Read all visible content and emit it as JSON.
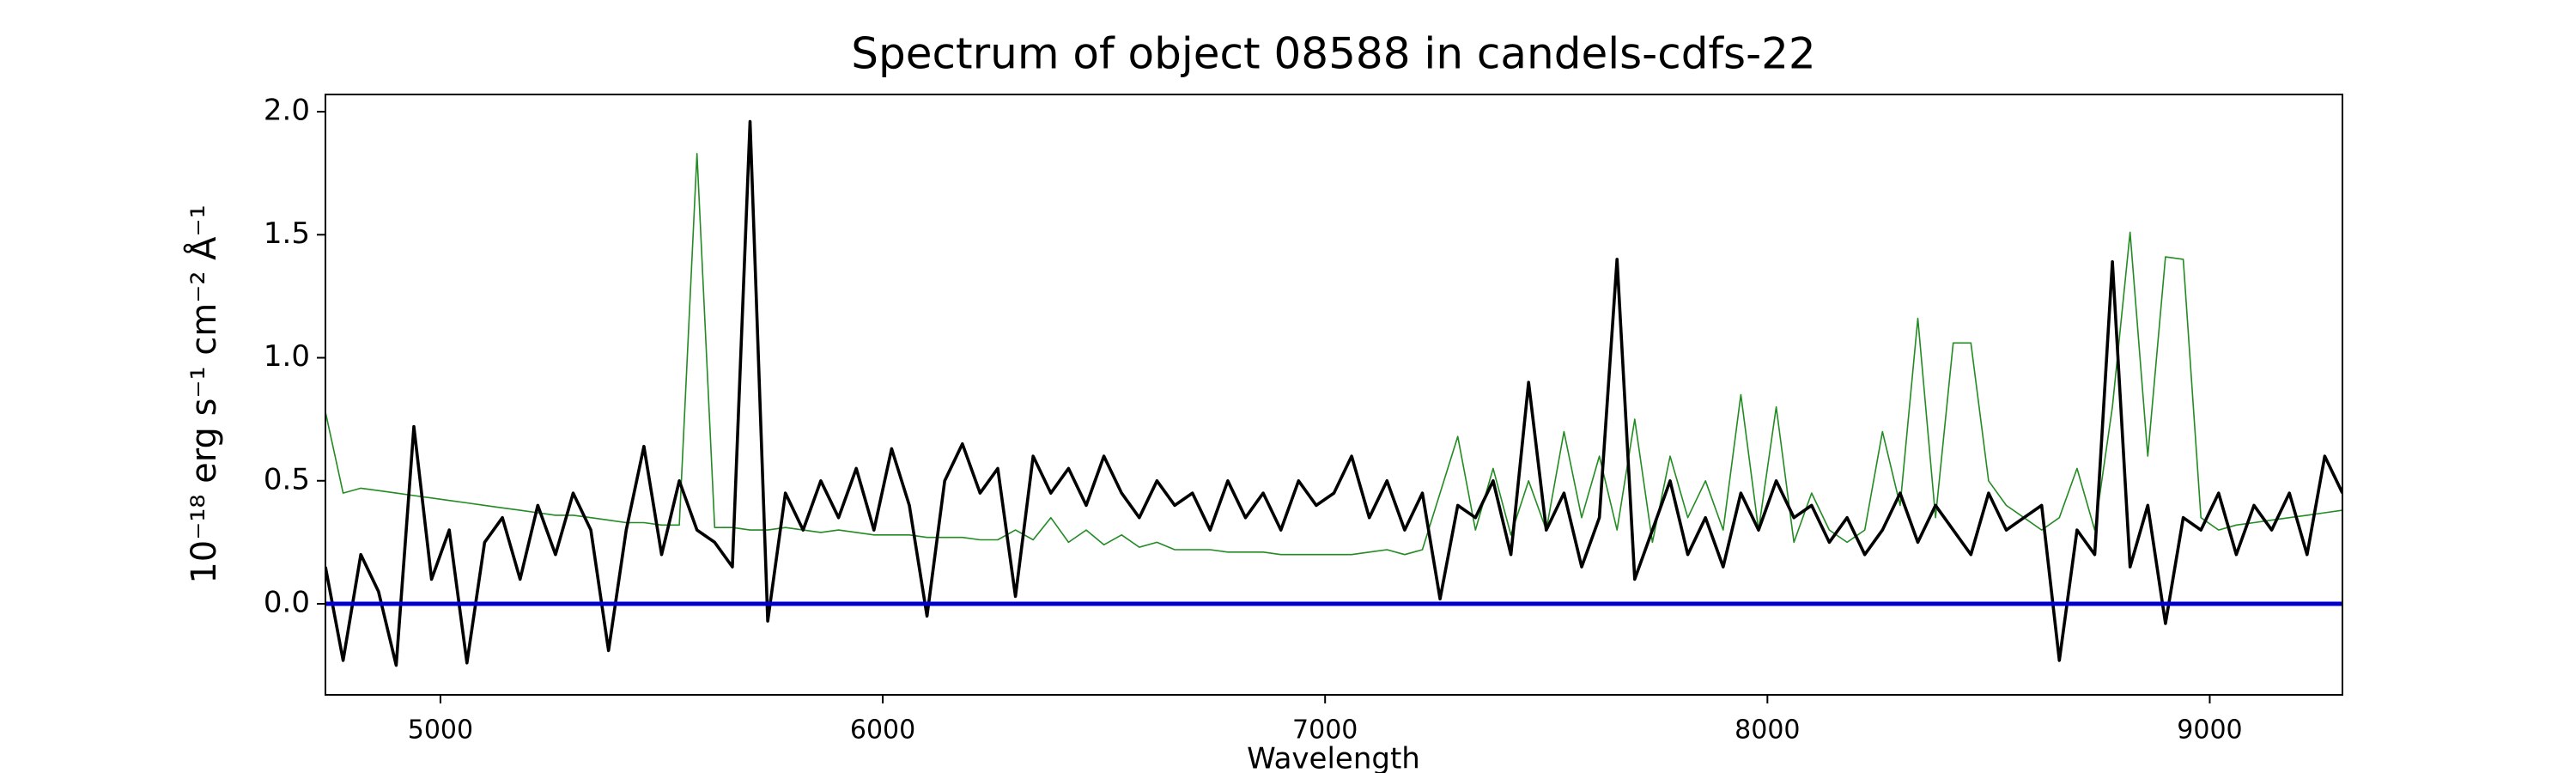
{
  "chart_data": {
    "type": "line",
    "title": "Spectrum of object 08588 in candels-cdfs-22",
    "xlabel": "Wavelength",
    "ylabel": "10⁻¹⁸ erg s⁻¹ cm⁻² Å⁻¹",
    "xlim": [
      4740,
      9300
    ],
    "ylim": [
      -0.37,
      2.07
    ],
    "xticks": [
      5000,
      6000,
      7000,
      8000,
      9000
    ],
    "yticks": [
      {
        "value": 0,
        "label": "0.0"
      },
      {
        "value": 0.5,
        "label": "0.5"
      },
      {
        "value": 1,
        "label": "1.0"
      },
      {
        "value": 1.5,
        "label": "1.5"
      },
      {
        "value": 2,
        "label": "2.0"
      }
    ],
    "x": [
      4740,
      4780,
      4820,
      4860,
      4900,
      4940,
      4980,
      5020,
      5060,
      5100,
      5140,
      5180,
      5220,
      5260,
      5300,
      5340,
      5380,
      5420,
      5460,
      5500,
      5540,
      5580,
      5620,
      5660,
      5700,
      5740,
      5780,
      5820,
      5860,
      5900,
      5940,
      5980,
      6020,
      6060,
      6100,
      6140,
      6180,
      6220,
      6260,
      6300,
      6340,
      6380,
      6420,
      6460,
      6500,
      6540,
      6580,
      6620,
      6660,
      6700,
      6740,
      6780,
      6820,
      6860,
      6900,
      6940,
      6980,
      7020,
      7060,
      7100,
      7140,
      7180,
      7220,
      7260,
      7300,
      7340,
      7380,
      7420,
      7460,
      7500,
      7540,
      7580,
      7620,
      7660,
      7700,
      7740,
      7780,
      7820,
      7860,
      7900,
      7940,
      7980,
      8020,
      8060,
      8100,
      8140,
      8180,
      8220,
      8260,
      8300,
      8340,
      8380,
      8420,
      8460,
      8500,
      8540,
      8580,
      8620,
      8660,
      8700,
      8740,
      8780,
      8820,
      8860,
      8900,
      8940,
      8980,
      9020,
      9060,
      9100,
      9140,
      9180,
      9220,
      9260,
      9300
    ],
    "series": [
      {
        "color": "#228b22",
        "width": 1.6,
        "values": [
          0.78,
          0.45,
          0.47,
          0.46,
          0.45,
          0.44,
          0.43,
          0.42,
          0.41,
          0.4,
          0.39,
          0.38,
          0.37,
          0.36,
          0.36,
          0.35,
          0.34,
          0.33,
          0.33,
          0.32,
          0.32,
          1.83,
          0.31,
          0.31,
          0.3,
          0.3,
          0.31,
          0.3,
          0.29,
          0.3,
          0.29,
          0.28,
          0.28,
          0.28,
          0.27,
          0.27,
          0.27,
          0.26,
          0.26,
          0.3,
          0.26,
          0.35,
          0.25,
          0.3,
          0.24,
          0.28,
          0.23,
          0.25,
          0.22,
          0.22,
          0.22,
          0.21,
          0.21,
          0.21,
          0.2,
          0.2,
          0.2,
          0.2,
          0.2,
          0.21,
          0.22,
          0.2,
          0.22,
          0.45,
          0.68,
          0.3,
          0.55,
          0.28,
          0.5,
          0.3,
          0.7,
          0.35,
          0.6,
          0.3,
          0.75,
          0.25,
          0.6,
          0.35,
          0.5,
          0.3,
          0.85,
          0.3,
          0.8,
          0.25,
          0.45,
          0.3,
          0.25,
          0.3,
          0.7,
          0.4,
          1.16,
          0.35,
          1.06,
          1.06,
          0.5,
          0.4,
          0.35,
          0.3,
          0.35,
          0.55,
          0.3,
          0.8,
          1.51,
          0.6,
          1.41,
          1.4,
          0.35,
          0.3,
          0.32,
          0.33,
          0.34,
          0.35,
          0.36,
          0.37,
          0.38
        ]
      },
      {
        "color": "#000000",
        "width": 3.6,
        "values": [
          0.15,
          -0.23,
          0.2,
          0.05,
          -0.25,
          0.72,
          0.1,
          0.3,
          -0.24,
          0.25,
          0.35,
          0.1,
          0.4,
          0.2,
          0.45,
          0.3,
          -0.19,
          0.3,
          0.64,
          0.2,
          0.5,
          0.3,
          0.25,
          0.15,
          1.96,
          -0.07,
          0.45,
          0.3,
          0.5,
          0.35,
          0.55,
          0.3,
          0.63,
          0.4,
          -0.05,
          0.5,
          0.65,
          0.45,
          0.55,
          0.03,
          0.6,
          0.45,
          0.55,
          0.4,
          0.6,
          0.45,
          0.35,
          0.5,
          0.4,
          0.45,
          0.3,
          0.5,
          0.35,
          0.45,
          0.3,
          0.5,
          0.4,
          0.45,
          0.6,
          0.35,
          0.5,
          0.3,
          0.45,
          0.02,
          0.4,
          0.35,
          0.5,
          0.2,
          0.9,
          0.3,
          0.45,
          0.15,
          0.35,
          1.4,
          0.1,
          0.3,
          0.5,
          0.2,
          0.35,
          0.15,
          0.45,
          0.3,
          0.5,
          0.35,
          0.4,
          0.25,
          0.35,
          0.2,
          0.3,
          0.45,
          0.25,
          0.4,
          0.3,
          0.2,
          0.45,
          0.3,
          0.35,
          0.4,
          -0.23,
          0.3,
          0.2,
          1.39,
          0.15,
          0.4,
          -0.08,
          0.35,
          0.3,
          0.45,
          0.2,
          0.4,
          0.3,
          0.45,
          0.2,
          0.6,
          0.45
        ]
      }
    ],
    "hlines": [
      {
        "value": 0,
        "color": "#0000cc"
      }
    ]
  }
}
